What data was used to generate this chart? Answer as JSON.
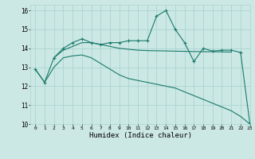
{
  "xlabel": "Humidex (Indice chaleur)",
  "xlim": [
    -0.5,
    23
  ],
  "ylim": [
    10,
    16.3
  ],
  "yticks": [
    10,
    11,
    12,
    13,
    14,
    15,
    16
  ],
  "xticks": [
    0,
    1,
    2,
    3,
    4,
    5,
    6,
    7,
    8,
    9,
    10,
    11,
    12,
    13,
    14,
    15,
    16,
    17,
    18,
    19,
    20,
    21,
    22,
    23
  ],
  "bg_color": "#cce8e5",
  "grid_color": "#aad4d0",
  "line_color": "#1a7a6a",
  "zigzag_x": [
    0,
    1,
    2,
    3,
    4,
    5,
    6,
    7,
    8,
    9,
    10,
    11,
    12,
    13,
    14,
    15,
    16,
    17,
    18,
    19,
    20,
    21,
    22,
    23
  ],
  "zigzag_y": [
    12.9,
    12.2,
    13.5,
    14.0,
    14.3,
    14.5,
    14.3,
    14.2,
    14.3,
    14.3,
    14.4,
    14.4,
    14.4,
    15.7,
    16.0,
    15.0,
    14.3,
    13.3,
    14.0,
    13.85,
    13.9,
    13.9,
    13.78,
    10.0
  ],
  "diag_x": [
    0,
    1,
    2,
    3,
    4,
    5,
    6,
    7,
    8,
    9,
    10,
    11,
    12,
    13,
    14,
    15,
    16,
    17,
    18,
    19,
    20,
    21,
    22,
    23
  ],
  "diag_y": [
    12.9,
    12.2,
    13.0,
    13.5,
    13.6,
    13.65,
    13.5,
    13.2,
    12.9,
    12.6,
    12.4,
    12.3,
    12.2,
    12.1,
    12.0,
    11.9,
    11.7,
    11.5,
    11.3,
    11.1,
    10.9,
    10.7,
    10.4,
    10.0
  ],
  "smooth_x": [
    2,
    3,
    4,
    5,
    6,
    7,
    8,
    9,
    10,
    11,
    12,
    13,
    14,
    15,
    16,
    17,
    18,
    19,
    20,
    21
  ],
  "smooth_y": [
    13.5,
    13.9,
    14.1,
    14.3,
    14.3,
    14.2,
    14.1,
    14.0,
    13.95,
    13.9,
    13.88,
    13.87,
    13.86,
    13.85,
    13.84,
    13.83,
    13.82,
    13.82,
    13.81,
    13.8
  ]
}
